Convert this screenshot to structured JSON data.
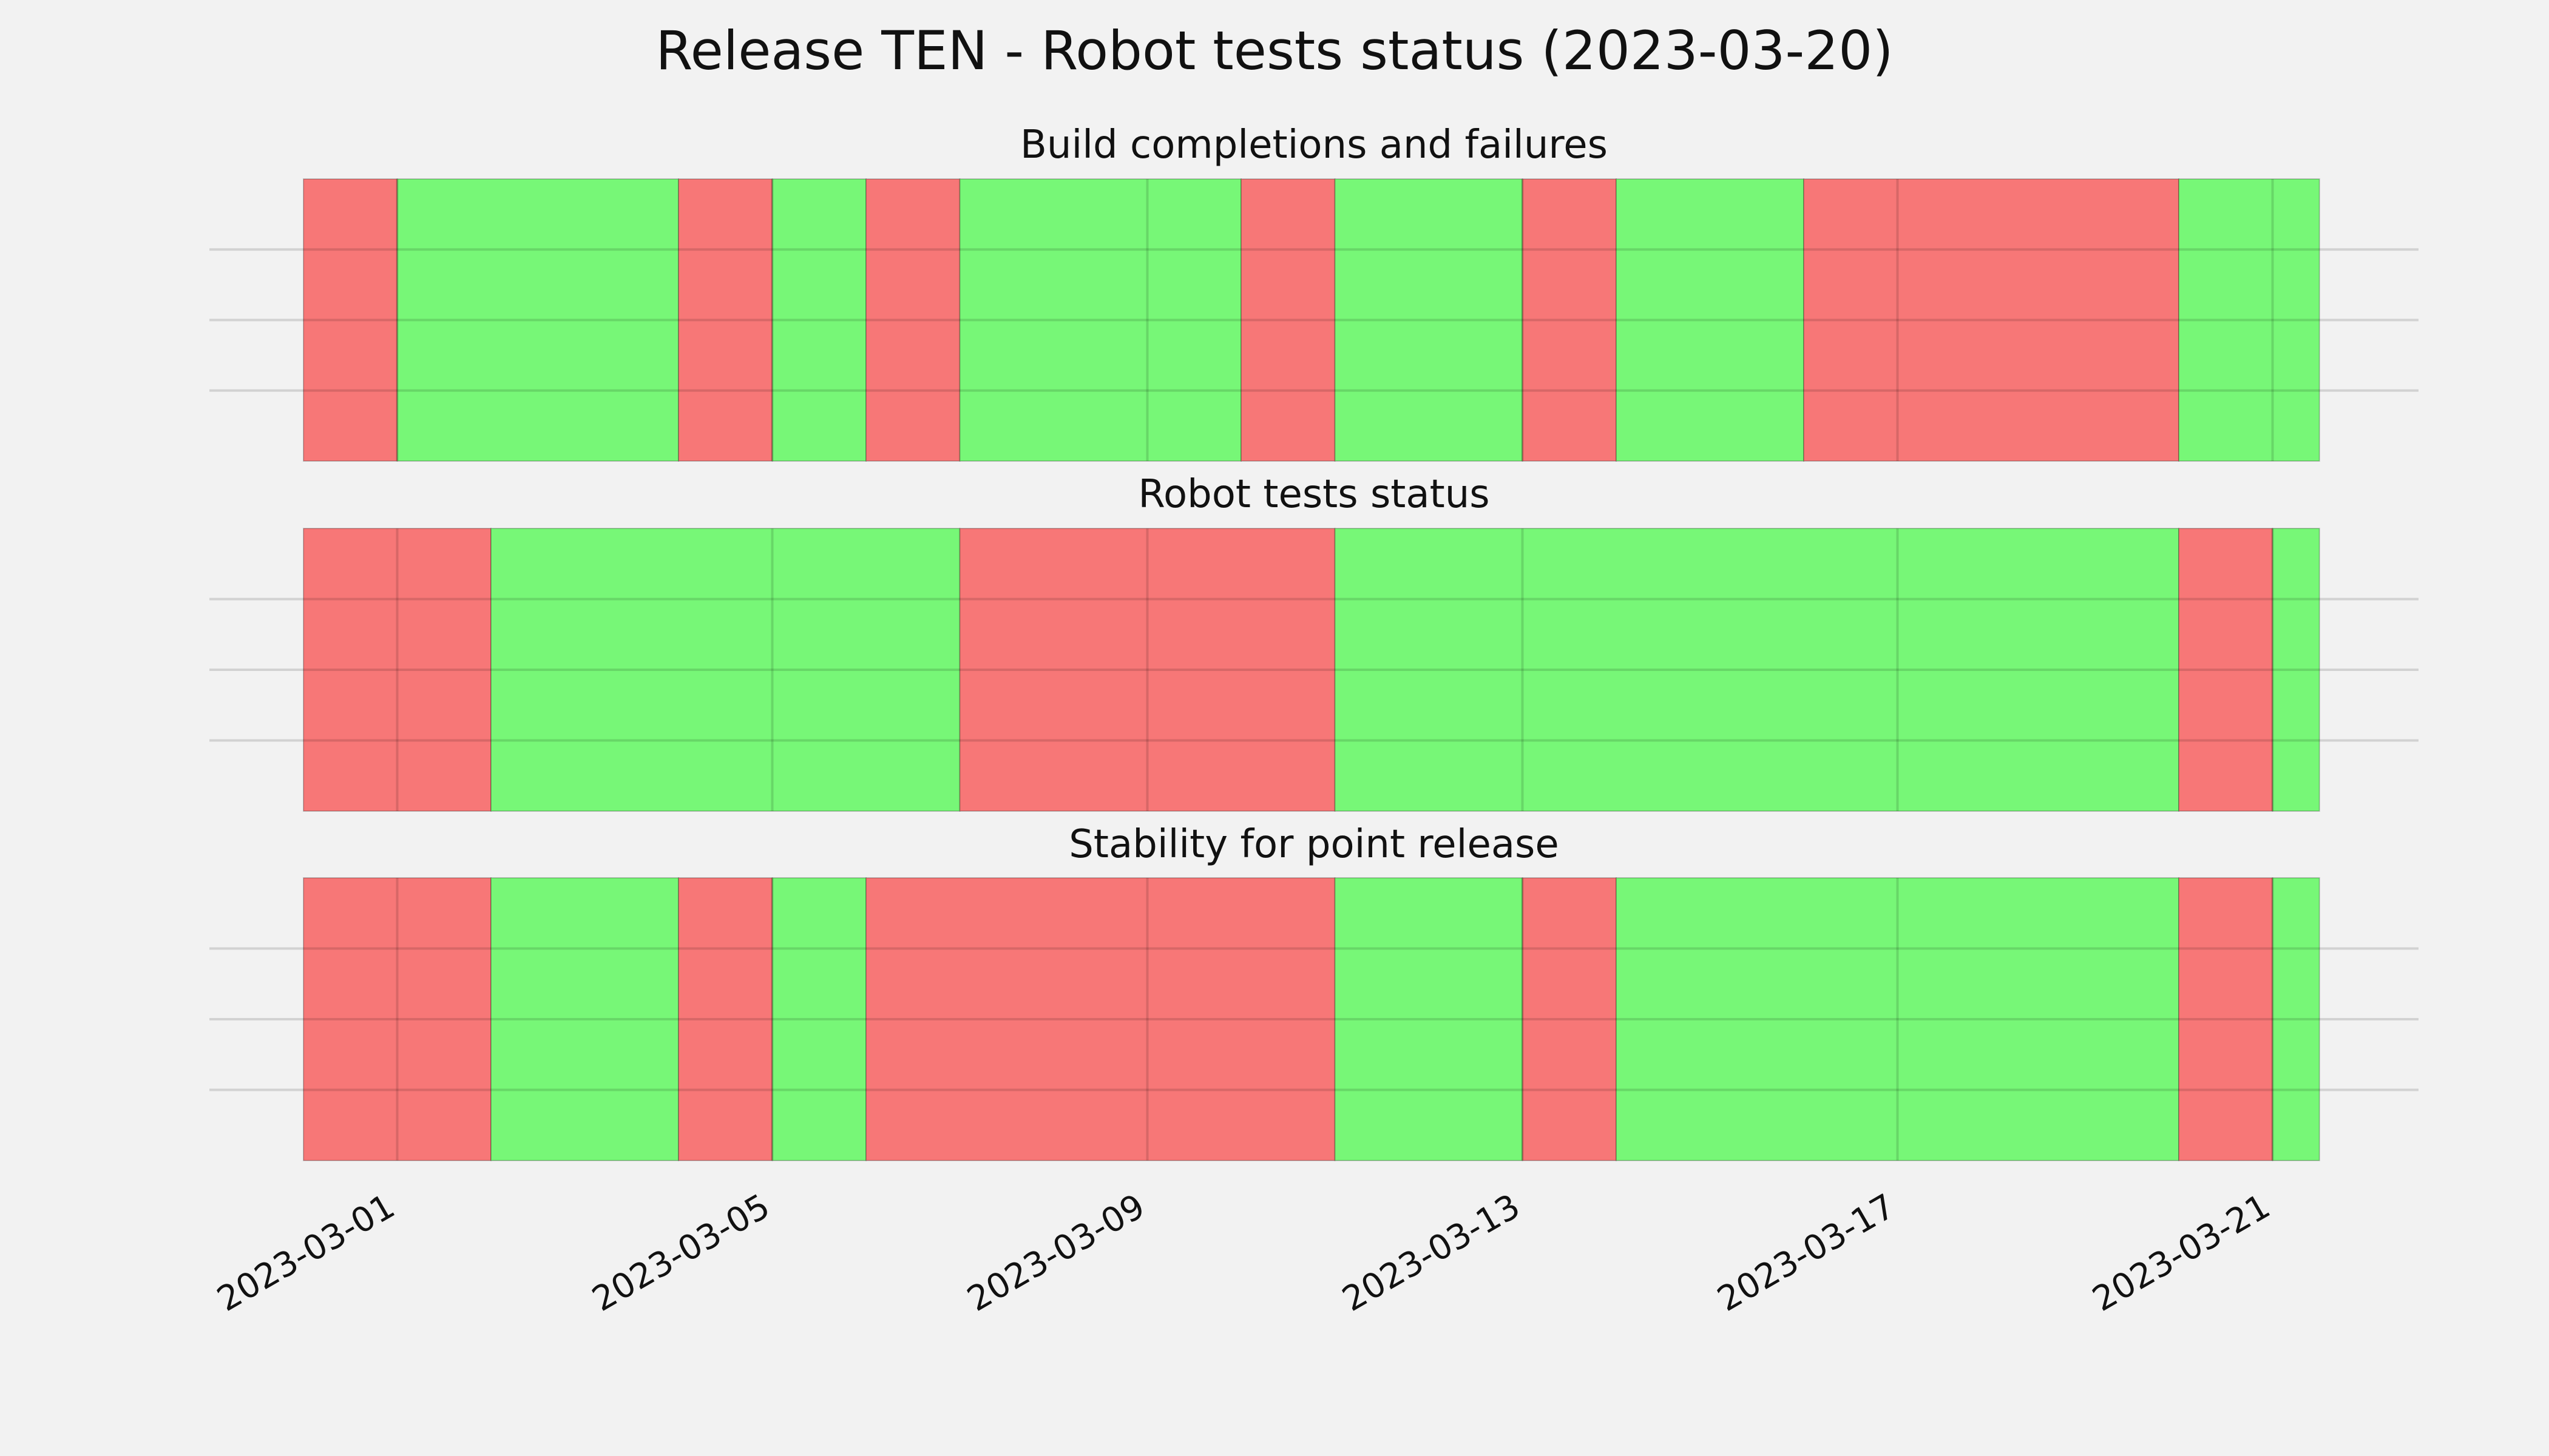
{
  "chart_data": {
    "type": "timeline",
    "title": "Release TEN - Robot tests status (2023-03-20)",
    "xlim": [
      "2023-02-28",
      "2023-03-21"
    ],
    "x_ticks": [
      "2023-03-01",
      "2023-03-05",
      "2023-03-09",
      "2023-03-13",
      "2023-03-17",
      "2023-03-21"
    ],
    "grid": true,
    "colors": {
      "pass": "#77f777",
      "fail": "#f77777",
      "background": "#f2f2f2",
      "grid": "#cccccc"
    },
    "panels": [
      {
        "title": "Build completions and failures",
        "segments": [
          {
            "start": "2023-02-28T00:00",
            "end": "2023-03-01T00:00",
            "status": "fail"
          },
          {
            "start": "2023-03-01T00:00",
            "end": "2023-03-04T00:00",
            "status": "pass"
          },
          {
            "start": "2023-03-04T00:00",
            "end": "2023-03-05T00:00",
            "status": "fail"
          },
          {
            "start": "2023-03-05T00:00",
            "end": "2023-03-06T00:00",
            "status": "pass"
          },
          {
            "start": "2023-03-06T00:00",
            "end": "2023-03-07T00:00",
            "status": "fail"
          },
          {
            "start": "2023-03-07T00:00",
            "end": "2023-03-10T00:00",
            "status": "pass"
          },
          {
            "start": "2023-03-10T00:00",
            "end": "2023-03-11T00:00",
            "status": "fail"
          },
          {
            "start": "2023-03-11T00:00",
            "end": "2023-03-13T00:00",
            "status": "pass"
          },
          {
            "start": "2023-03-13T00:00",
            "end": "2023-03-14T00:00",
            "status": "fail"
          },
          {
            "start": "2023-03-14T00:00",
            "end": "2023-03-16T00:00",
            "status": "pass"
          },
          {
            "start": "2023-03-16T00:00",
            "end": "2023-03-20T00:00",
            "status": "fail"
          },
          {
            "start": "2023-03-20T00:00",
            "end": "2023-03-21T12:00",
            "status": "pass"
          }
        ]
      },
      {
        "title": "Robot tests status",
        "segments": [
          {
            "start": "2023-02-28T00:00",
            "end": "2023-03-02T00:00",
            "status": "fail"
          },
          {
            "start": "2023-03-02T00:00",
            "end": "2023-03-07T00:00",
            "status": "pass"
          },
          {
            "start": "2023-03-07T00:00",
            "end": "2023-03-11T00:00",
            "status": "fail"
          },
          {
            "start": "2023-03-11T00:00",
            "end": "2023-03-20T00:00",
            "status": "pass"
          },
          {
            "start": "2023-03-20T00:00",
            "end": "2023-03-21T00:00",
            "status": "fail"
          },
          {
            "start": "2023-03-21T00:00",
            "end": "2023-03-21T12:00",
            "status": "pass"
          }
        ]
      },
      {
        "title": "Stability for point release",
        "segments": [
          {
            "start": "2023-02-28T00:00",
            "end": "2023-03-02T00:00",
            "status": "fail"
          },
          {
            "start": "2023-03-02T00:00",
            "end": "2023-03-04T00:00",
            "status": "pass"
          },
          {
            "start": "2023-03-04T00:00",
            "end": "2023-03-05T00:00",
            "status": "fail"
          },
          {
            "start": "2023-03-05T00:00",
            "end": "2023-03-06T00:00",
            "status": "pass"
          },
          {
            "start": "2023-03-06T00:00",
            "end": "2023-03-11T00:00",
            "status": "fail"
          },
          {
            "start": "2023-03-11T00:00",
            "end": "2023-03-13T00:00",
            "status": "pass"
          },
          {
            "start": "2023-03-13T00:00",
            "end": "2023-03-14T00:00",
            "status": "fail"
          },
          {
            "start": "2023-03-14T00:00",
            "end": "2023-03-20T00:00",
            "status": "pass"
          },
          {
            "start": "2023-03-20T00:00",
            "end": "2023-03-21T00:00",
            "status": "fail"
          },
          {
            "start": "2023-03-21T00:00",
            "end": "2023-03-21T12:00",
            "status": "pass"
          }
        ]
      }
    ]
  }
}
